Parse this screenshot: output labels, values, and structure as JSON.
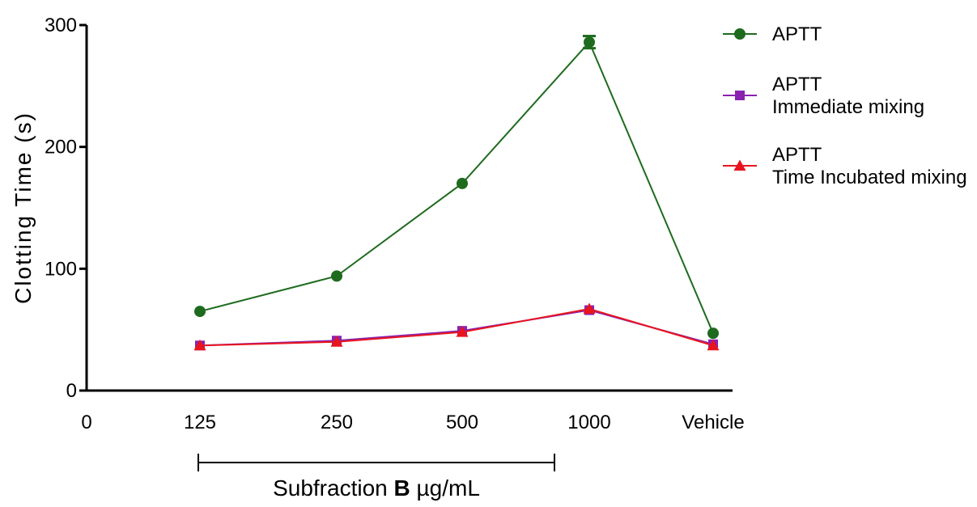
{
  "chart_data": {
    "type": "line",
    "ylabel": "Clotting Time (s)",
    "ylim": [
      0,
      300
    ],
    "yticks": [
      0,
      100,
      200,
      300
    ],
    "categories": [
      "0",
      "125",
      "250",
      "500",
      "1000",
      "Vehicle"
    ],
    "group_label": {
      "prefix": "Subfraction ",
      "bold": "B",
      "suffix": " µg/mL",
      "spans": [
        "125",
        "1000"
      ]
    },
    "series": [
      {
        "name": "APTT",
        "name_lines": [
          "APTT"
        ],
        "marker": "circle",
        "color": "#1e6b1e",
        "x": [
          "125",
          "250",
          "500",
          "1000",
          "Vehicle"
        ],
        "values": [
          65,
          94,
          170,
          286,
          47
        ],
        "error": [
          0,
          0,
          0,
          5,
          0
        ]
      },
      {
        "name": "APTT Immediate mixing",
        "name_lines": [
          "APTT",
          "Immediate mixing"
        ],
        "marker": "square",
        "color": "#8a22b0",
        "x": [
          "125",
          "250",
          "500",
          "1000",
          "Vehicle"
        ],
        "values": [
          37,
          41,
          49,
          66,
          38
        ],
        "error": [
          0,
          0,
          0,
          0,
          0
        ]
      },
      {
        "name": "APTT Time Incubated mixing",
        "name_lines": [
          "APTT",
          "Time Incubated mixing"
        ],
        "marker": "triangle",
        "color": "#e8141e",
        "x": [
          "125",
          "250",
          "500",
          "1000",
          "Vehicle"
        ],
        "values": [
          37,
          40,
          48,
          67,
          37
        ],
        "error": [
          0,
          0,
          0,
          0,
          0
        ]
      }
    ],
    "legend": "right"
  }
}
